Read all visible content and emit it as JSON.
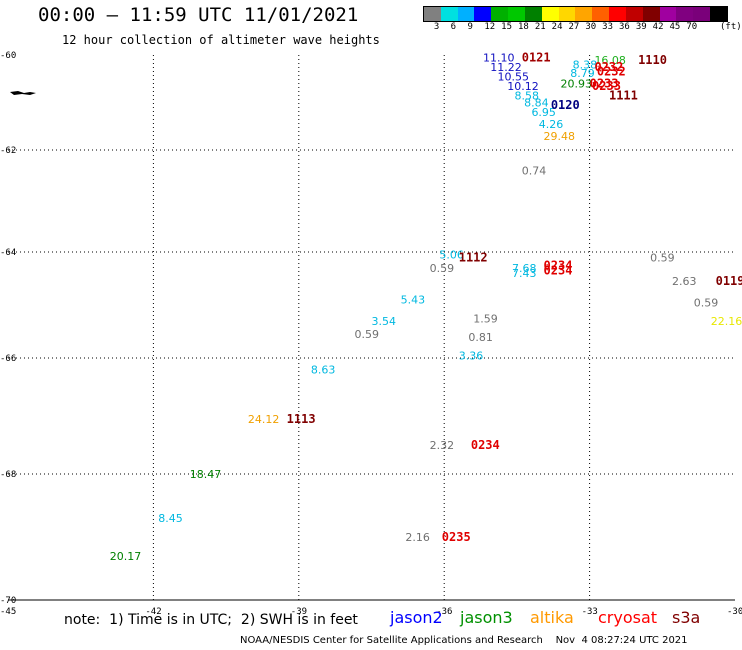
{
  "header": {
    "title": "00:00 – 11:59 UTC 11/01/2021",
    "subtitle": "12 hour collection of altimeter wave heights"
  },
  "colorbar": {
    "colors": [
      "#808080",
      "#00e0e0",
      "#00b0ff",
      "#0000ff",
      "#00b000",
      "#00c800",
      "#008000",
      "#ffff00",
      "#ffd700",
      "#ffa500",
      "#ff6000",
      "#ff0000",
      "#c00000",
      "#800000",
      "#a000a0",
      "#800080",
      "#7a007a",
      "#000000"
    ],
    "labels": [
      "3",
      "6",
      "9",
      "12",
      "15",
      "18",
      "21",
      "24",
      "27",
      "30",
      "33",
      "36",
      "39",
      "42",
      "45",
      "70",
      "(ft)"
    ]
  },
  "axes": {
    "x_ticks": [
      "-45",
      "-42",
      "-39",
      "-36",
      "-33",
      "-30"
    ],
    "y_ticks": [
      "-60",
      "-62",
      "-64",
      "-66",
      "-68",
      "-70"
    ]
  },
  "observations": [
    {
      "text": "11.10",
      "lon": -35.2,
      "lat": -60.05,
      "color": "#1010c0"
    },
    {
      "text": "11.22",
      "lon": -35.05,
      "lat": -60.25,
      "color": "#1010c0"
    },
    {
      "text": "10.55",
      "lon": -34.9,
      "lat": -60.45,
      "color": "#1010c0"
    },
    {
      "text": "10.12",
      "lon": -34.7,
      "lat": -60.65,
      "color": "#1010c0"
    },
    {
      "text": "8.58",
      "lon": -34.55,
      "lat": -60.85,
      "color": "#00b8e0"
    },
    {
      "text": "8.84",
      "lon": -34.35,
      "lat": -61.0,
      "color": "#00b8e0"
    },
    {
      "text": "6.95",
      "lon": -34.2,
      "lat": -61.2,
      "color": "#00b8e0"
    },
    {
      "text": "4.26",
      "lon": -34.05,
      "lat": -61.45,
      "color": "#00b8e0"
    },
    {
      "text": "29.48",
      "lon": -33.95,
      "lat": -61.7,
      "color": "#f0a000"
    },
    {
      "text": "8.38",
      "lon": -33.35,
      "lat": -60.2,
      "color": "#00b8e0"
    },
    {
      "text": "8.79",
      "lon": -33.4,
      "lat": -60.38,
      "color": "#00b8e0"
    },
    {
      "text": "16.08",
      "lon": -32.9,
      "lat": -60.1,
      "color": "#20b020"
    },
    {
      "text": "20.93",
      "lon": -33.6,
      "lat": -60.6,
      "color": "#008000"
    },
    {
      "text": "0.74",
      "lon": -34.4,
      "lat": -62.4,
      "color": "#707070"
    },
    {
      "text": "5.06",
      "lon": -36.1,
      "lat": -64.05,
      "color": "#00b8e0"
    },
    {
      "text": "0.59",
      "lon": -36.3,
      "lat": -64.3,
      "color": "#707070"
    },
    {
      "text": "7.68",
      "lon": -34.6,
      "lat": -64.3,
      "color": "#00b8e0"
    },
    {
      "text": "7.43",
      "lon": -34.6,
      "lat": -64.4,
      "color": "#00b8e0"
    },
    {
      "text": "5.43",
      "lon": -36.9,
      "lat": -64.9,
      "color": "#00b8e0"
    },
    {
      "text": "3.54",
      "lon": -37.5,
      "lat": -65.3,
      "color": "#00b8e0"
    },
    {
      "text": "0.59",
      "lon": -37.85,
      "lat": -65.55,
      "color": "#707070"
    },
    {
      "text": "1.59",
      "lon": -35.4,
      "lat": -65.25,
      "color": "#707070"
    },
    {
      "text": "0.81",
      "lon": -35.5,
      "lat": -65.6,
      "color": "#707070"
    },
    {
      "text": "3.36",
      "lon": -35.7,
      "lat": -65.95,
      "color": "#00b8e0"
    },
    {
      "text": "8.63",
      "lon": -38.75,
      "lat": -66.2,
      "color": "#00b8e0"
    },
    {
      "text": "24.12",
      "lon": -40.05,
      "lat": -67.05,
      "color": "#f0a000"
    },
    {
      "text": "2.32",
      "lon": -36.3,
      "lat": -67.5,
      "color": "#707070"
    },
    {
      "text": "18.47",
      "lon": -41.25,
      "lat": -68.0,
      "color": "#008000"
    },
    {
      "text": "8.45",
      "lon": -41.9,
      "lat": -68.7,
      "color": "#00b8e0"
    },
    {
      "text": "20.17",
      "lon": -42.9,
      "lat": -69.3,
      "color": "#008000"
    },
    {
      "text": "2.16",
      "lon": -36.8,
      "lat": -69.0,
      "color": "#707070"
    },
    {
      "text": "0.59",
      "lon": -31.75,
      "lat": -64.1,
      "color": "#707070"
    },
    {
      "text": "2.63",
      "lon": -31.3,
      "lat": -64.55,
      "color": "#707070"
    },
    {
      "text": "0.59",
      "lon": -30.85,
      "lat": -64.95,
      "color": "#707070"
    },
    {
      "text": "22.16",
      "lon": -30.5,
      "lat": -65.3,
      "color": "#e8e800"
    }
  ],
  "passes": [
    {
      "text": "0121",
      "lon": -34.4,
      "lat": -60.05,
      "color": "#a00000"
    },
    {
      "text": "1110",
      "lon": -32.0,
      "lat": -60.1,
      "color": "#800000"
    },
    {
      "text": "0232",
      "lon": -32.9,
      "lat": -60.25,
      "color": "#e00000"
    },
    {
      "text": "0232",
      "lon": -32.85,
      "lat": -60.35,
      "color": "#e00000"
    },
    {
      "text": "0233",
      "lon": -33.0,
      "lat": -60.6,
      "color": "#e00000"
    },
    {
      "text": "0233",
      "lon": -32.95,
      "lat": -60.65,
      "color": "#e00000"
    },
    {
      "text": "1111",
      "lon": -32.6,
      "lat": -60.85,
      "color": "#800000"
    },
    {
      "text": "0120",
      "lon": -33.8,
      "lat": -61.05,
      "color": "#000080"
    },
    {
      "text": "1112",
      "lon": -35.7,
      "lat": -64.1,
      "color": "#800000"
    },
    {
      "text": "0234",
      "lon": -33.95,
      "lat": -64.25,
      "color": "#e00000"
    },
    {
      "text": "0234",
      "lon": -33.95,
      "lat": -64.35,
      "color": "#e00000"
    },
    {
      "text": "0119",
      "lon": -30.4,
      "lat": -64.55,
      "color": "#800000"
    },
    {
      "text": "1113",
      "lon": -39.25,
      "lat": -67.05,
      "color": "#800000"
    },
    {
      "text": "0234",
      "lon": -35.45,
      "lat": -67.5,
      "color": "#e00000"
    },
    {
      "text": "0235",
      "lon": -36.05,
      "lat": -69.0,
      "color": "#e00000"
    }
  ],
  "note": "note:  1) Time is in UTC;  2) SWH is in feet",
  "legend": [
    {
      "text": "jason2",
      "color": "#0000ff"
    },
    {
      "text": "jason3",
      "color": "#009000"
    },
    {
      "text": "altika",
      "color": "#ff9900"
    },
    {
      "text": "cryosat",
      "color": "#ff0000"
    },
    {
      "text": "s3a",
      "color": "#800000"
    }
  ],
  "footer": "NOAA/NESDIS Center for Satellite Applications and Research    Nov  4 08:27:24 UTC 2021"
}
